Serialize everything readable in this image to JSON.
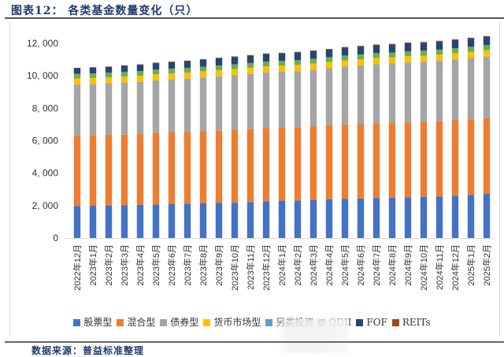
{
  "header": {
    "title": "图表12：  各类基金数量变化（只）"
  },
  "footer": {
    "source": "数据来源：普益标准整理"
  },
  "chart_data": {
    "type": "bar",
    "stacked": true,
    "title": "各类基金数量变化（只）",
    "xlabel": "",
    "ylabel": "",
    "ylim": [
      0,
      12000
    ],
    "yticks": [
      0,
      2000,
      4000,
      6000,
      8000,
      10000,
      12000
    ],
    "ytick_labels": [
      "0",
      "2, 000",
      "4, 000",
      "6, 000",
      "8, 000",
      "10, 000",
      "12, 000"
    ],
    "grid": false,
    "legend_position": "bottom",
    "categories": [
      "2022年12月",
      "2023年1月",
      "2023年2月",
      "2023年3月",
      "2023年4月",
      "2023年5月",
      "2023年6月",
      "2023年7月",
      "2023年8月",
      "2023年9月",
      "2023年10月",
      "2023年11月",
      "2023年12月",
      "2024年1月",
      "2024年2月",
      "2024年3月",
      "2024年4月",
      "2024年5月",
      "2024年6月",
      "2024年7月",
      "2024年8月",
      "2024年9月",
      "2024年10月",
      "2024年11月",
      "2024年12月",
      "2025年1月",
      "2025年2月"
    ],
    "series": [
      {
        "name": "股票型",
        "color": "#4472c4",
        "values": [
          1980,
          1990,
          2010,
          2030,
          2050,
          2070,
          2090,
          2110,
          2140,
          2160,
          2180,
          2220,
          2270,
          2300,
          2320,
          2350,
          2390,
          2420,
          2440,
          2470,
          2490,
          2500,
          2530,
          2560,
          2610,
          2660,
          2720
        ]
      },
      {
        "name": "混合型",
        "color": "#ed7d31",
        "values": [
          4320,
          4330,
          4330,
          4350,
          4360,
          4400,
          4420,
          4430,
          4440,
          4460,
          4480,
          4500,
          4520,
          4500,
          4500,
          4530,
          4560,
          4590,
          4600,
          4610,
          4610,
          4630,
          4630,
          4640,
          4650,
          4660,
          4680
        ]
      },
      {
        "name": "债券型",
        "color": "#a5a5a5",
        "values": [
          3160,
          3170,
          3190,
          3200,
          3220,
          3250,
          3260,
          3280,
          3320,
          3350,
          3380,
          3400,
          3420,
          3450,
          3470,
          3500,
          3520,
          3560,
          3600,
          3640,
          3660,
          3700,
          3700,
          3730,
          3760,
          3780,
          3790
        ]
      },
      {
        "name": "货币市场型",
        "color": "#ffc000",
        "values": [
          370,
          370,
          370,
          370,
          370,
          370,
          370,
          370,
          370,
          370,
          370,
          370,
          370,
          370,
          370,
          370,
          370,
          370,
          370,
          370,
          370,
          370,
          370,
          370,
          370,
          370,
          380
        ]
      },
      {
        "name": "另类投资",
        "color": "#5b9bd5",
        "values": [
          10,
          10,
          10,
          10,
          10,
          10,
          10,
          10,
          10,
          10,
          10,
          10,
          10,
          10,
          10,
          10,
          10,
          10,
          10,
          10,
          10,
          10,
          10,
          10,
          10,
          10,
          10
        ]
      },
      {
        "name": "QDII",
        "color": "#70ad47",
        "values": [
          280,
          280,
          280,
          280,
          280,
          280,
          285,
          285,
          285,
          290,
          290,
          290,
          290,
          290,
          295,
          295,
          295,
          300,
          300,
          300,
          300,
          300,
          305,
          305,
          305,
          310,
          310
        ]
      },
      {
        "name": "FOF",
        "color": "#264478",
        "values": [
          350,
          360,
          360,
          380,
          390,
          400,
          410,
          420,
          430,
          440,
          450,
          450,
          460,
          460,
          470,
          470,
          470,
          480,
          480,
          480,
          480,
          490,
          490,
          490,
          490,
          500,
          500
        ]
      },
      {
        "name": "REITs",
        "color": "#9e480e",
        "values": [
          20,
          22,
          24,
          26,
          28,
          30,
          32,
          33,
          34,
          35,
          36,
          37,
          38,
          40,
          41,
          42,
          43,
          44,
          45,
          46,
          47,
          48,
          50,
          52,
          54,
          57,
          60
        ]
      }
    ]
  }
}
